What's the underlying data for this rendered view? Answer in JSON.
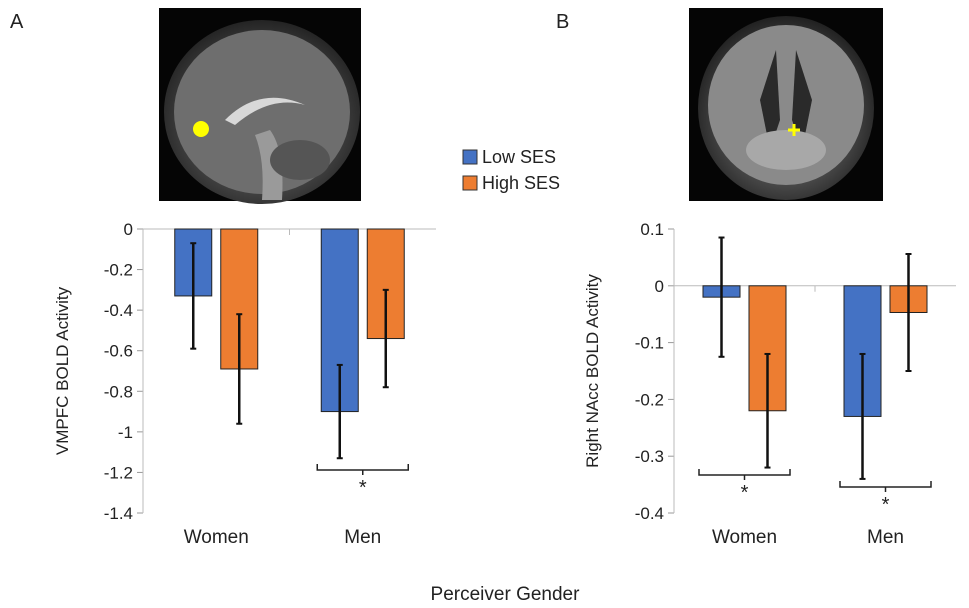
{
  "figure": {
    "x_axis_title": "Perceiver Gender"
  },
  "legend": {
    "items": [
      {
        "label": "Low SES",
        "color": "#4472C4"
      },
      {
        "label": "High SES",
        "color": "#ED7D31"
      }
    ]
  },
  "chart_data": [
    {
      "panel": "A",
      "type": "bar",
      "categories": [
        "Women",
        "Men"
      ],
      "ylabel": "VMPFC BOLD Activity",
      "ylim": [
        -1.4,
        0
      ],
      "yticks": [
        "0",
        "-0.2",
        "-0.4",
        "-0.6",
        "-0.8",
        "-1",
        "-1.2",
        "-1.4"
      ],
      "series": [
        {
          "name": "Low SES",
          "values": [
            -0.33,
            -0.9
          ],
          "error": [
            0.26,
            0.23
          ]
        },
        {
          "name": "High SES",
          "values": [
            -0.69,
            -0.54
          ],
          "error": [
            0.27,
            0.24
          ]
        }
      ],
      "significance": [
        {
          "category": "Men",
          "label": "*"
        }
      ],
      "brain_image": "sagittal-mri-with-yellow-roi"
    },
    {
      "panel": "B",
      "type": "bar",
      "categories": [
        "Women",
        "Men"
      ],
      "ylabel": "Right NAcc BOLD Activity",
      "ylim": [
        -0.4,
        0.1
      ],
      "yticks": [
        "0.1",
        "0",
        "-0.1",
        "-0.2",
        "-0.3",
        "-0.4"
      ],
      "series": [
        {
          "name": "Low SES",
          "values": [
            -0.02,
            -0.23
          ],
          "error": [
            0.105,
            0.11
          ]
        },
        {
          "name": "High SES",
          "values": [
            -0.22,
            -0.047
          ],
          "error": [
            0.1,
            0.103
          ]
        }
      ],
      "significance": [
        {
          "category": "Women",
          "label": "*"
        },
        {
          "category": "Men",
          "label": "*"
        }
      ],
      "brain_image": "coronal-mri-with-yellow-roi"
    }
  ]
}
